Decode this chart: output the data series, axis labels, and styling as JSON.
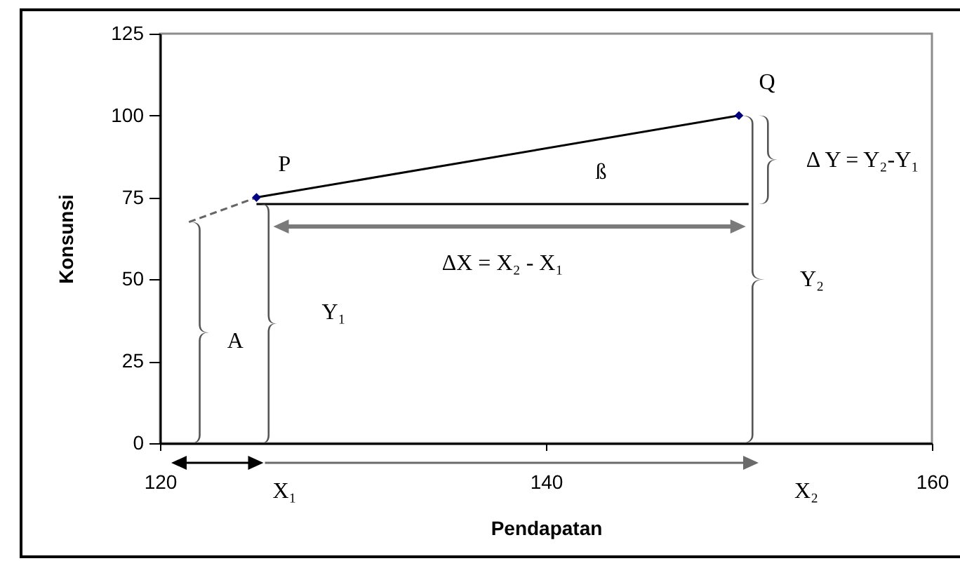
{
  "chart_data": {
    "type": "line",
    "xlabel": "Pendapatan",
    "ylabel": "Konsunsi",
    "xlim": [
      120,
      160
    ],
    "xticks": [
      120,
      140,
      160
    ],
    "ylim": [
      0,
      125
    ],
    "yticks": [
      0,
      25,
      50,
      75,
      100,
      125
    ],
    "grid": false,
    "series": [
      {
        "color": "#000000",
        "x": [
          125,
          150
        ],
        "values": [
          75,
          100
        ]
      },
      {
        "color": "#000000",
        "x": [
          125,
          150.5
        ],
        "values": [
          73,
          73
        ]
      },
      {
        "color": "#666666",
        "line_style": "dashed",
        "x": [
          121.5,
          125
        ],
        "values": [
          67.5,
          75
        ]
      },
      {
        "type": "scatter",
        "color": "#000080",
        "marker": "diamond",
        "x": [
          125,
          150
        ],
        "values": [
          75,
          100
        ]
      }
    ],
    "annotations": [
      {
        "text": "P",
        "x": 125,
        "y": 75
      },
      {
        "text": "Q",
        "x": 150,
        "y": 100
      },
      "ß",
      "Δ Y = Y₂-Y₁",
      "ΔX = X₂ - X₁",
      "Y₁",
      "A",
      "Y₂",
      "X₁",
      "X₂"
    ]
  }
}
